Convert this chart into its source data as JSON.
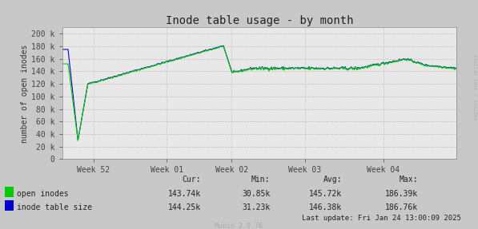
{
  "title": "Inode table usage - by month",
  "ylabel": "number of open inodes",
  "background_color": "#c8c8c8",
  "plot_bg_color": "#e8e8e8",
  "grid_color_h": "#cc8888",
  "grid_color_v": "#bbbbbb",
  "ytick_labels": [
    "0",
    "20 k",
    "40 k",
    "60 k",
    "80 k",
    "100 k",
    "120 k",
    "140 k",
    "160 k",
    "180 k",
    "200 k"
  ],
  "ytick_values": [
    0,
    20000,
    40000,
    60000,
    80000,
    100000,
    120000,
    140000,
    160000,
    180000,
    200000
  ],
  "xtick_labels": [
    "Week 52",
    "Week 01",
    "Week 02",
    "Week 03",
    "Week 04"
  ],
  "ylim": [
    0,
    210000
  ],
  "legend": [
    {
      "label": "open inodes",
      "color": "#00cc00"
    },
    {
      "label": "inode table size",
      "color": "#0000cc"
    }
  ],
  "stats_header": [
    "Cur:",
    "Min:",
    "Avg:",
    "Max:"
  ],
  "stats_open": [
    "143.74k",
    "30.85k",
    "145.72k",
    "186.39k"
  ],
  "stats_table": [
    "144.25k",
    "31.23k",
    "146.38k",
    "186.76k"
  ],
  "last_update": "Last update: Fri Jan 24 13:00:09 2025",
  "munin_version": "Munin 2.0.76",
  "watermark": "RRDTOOL / TOBI OETIKER",
  "title_fontsize": 10,
  "axis_fontsize": 7,
  "legend_fontsize": 7
}
